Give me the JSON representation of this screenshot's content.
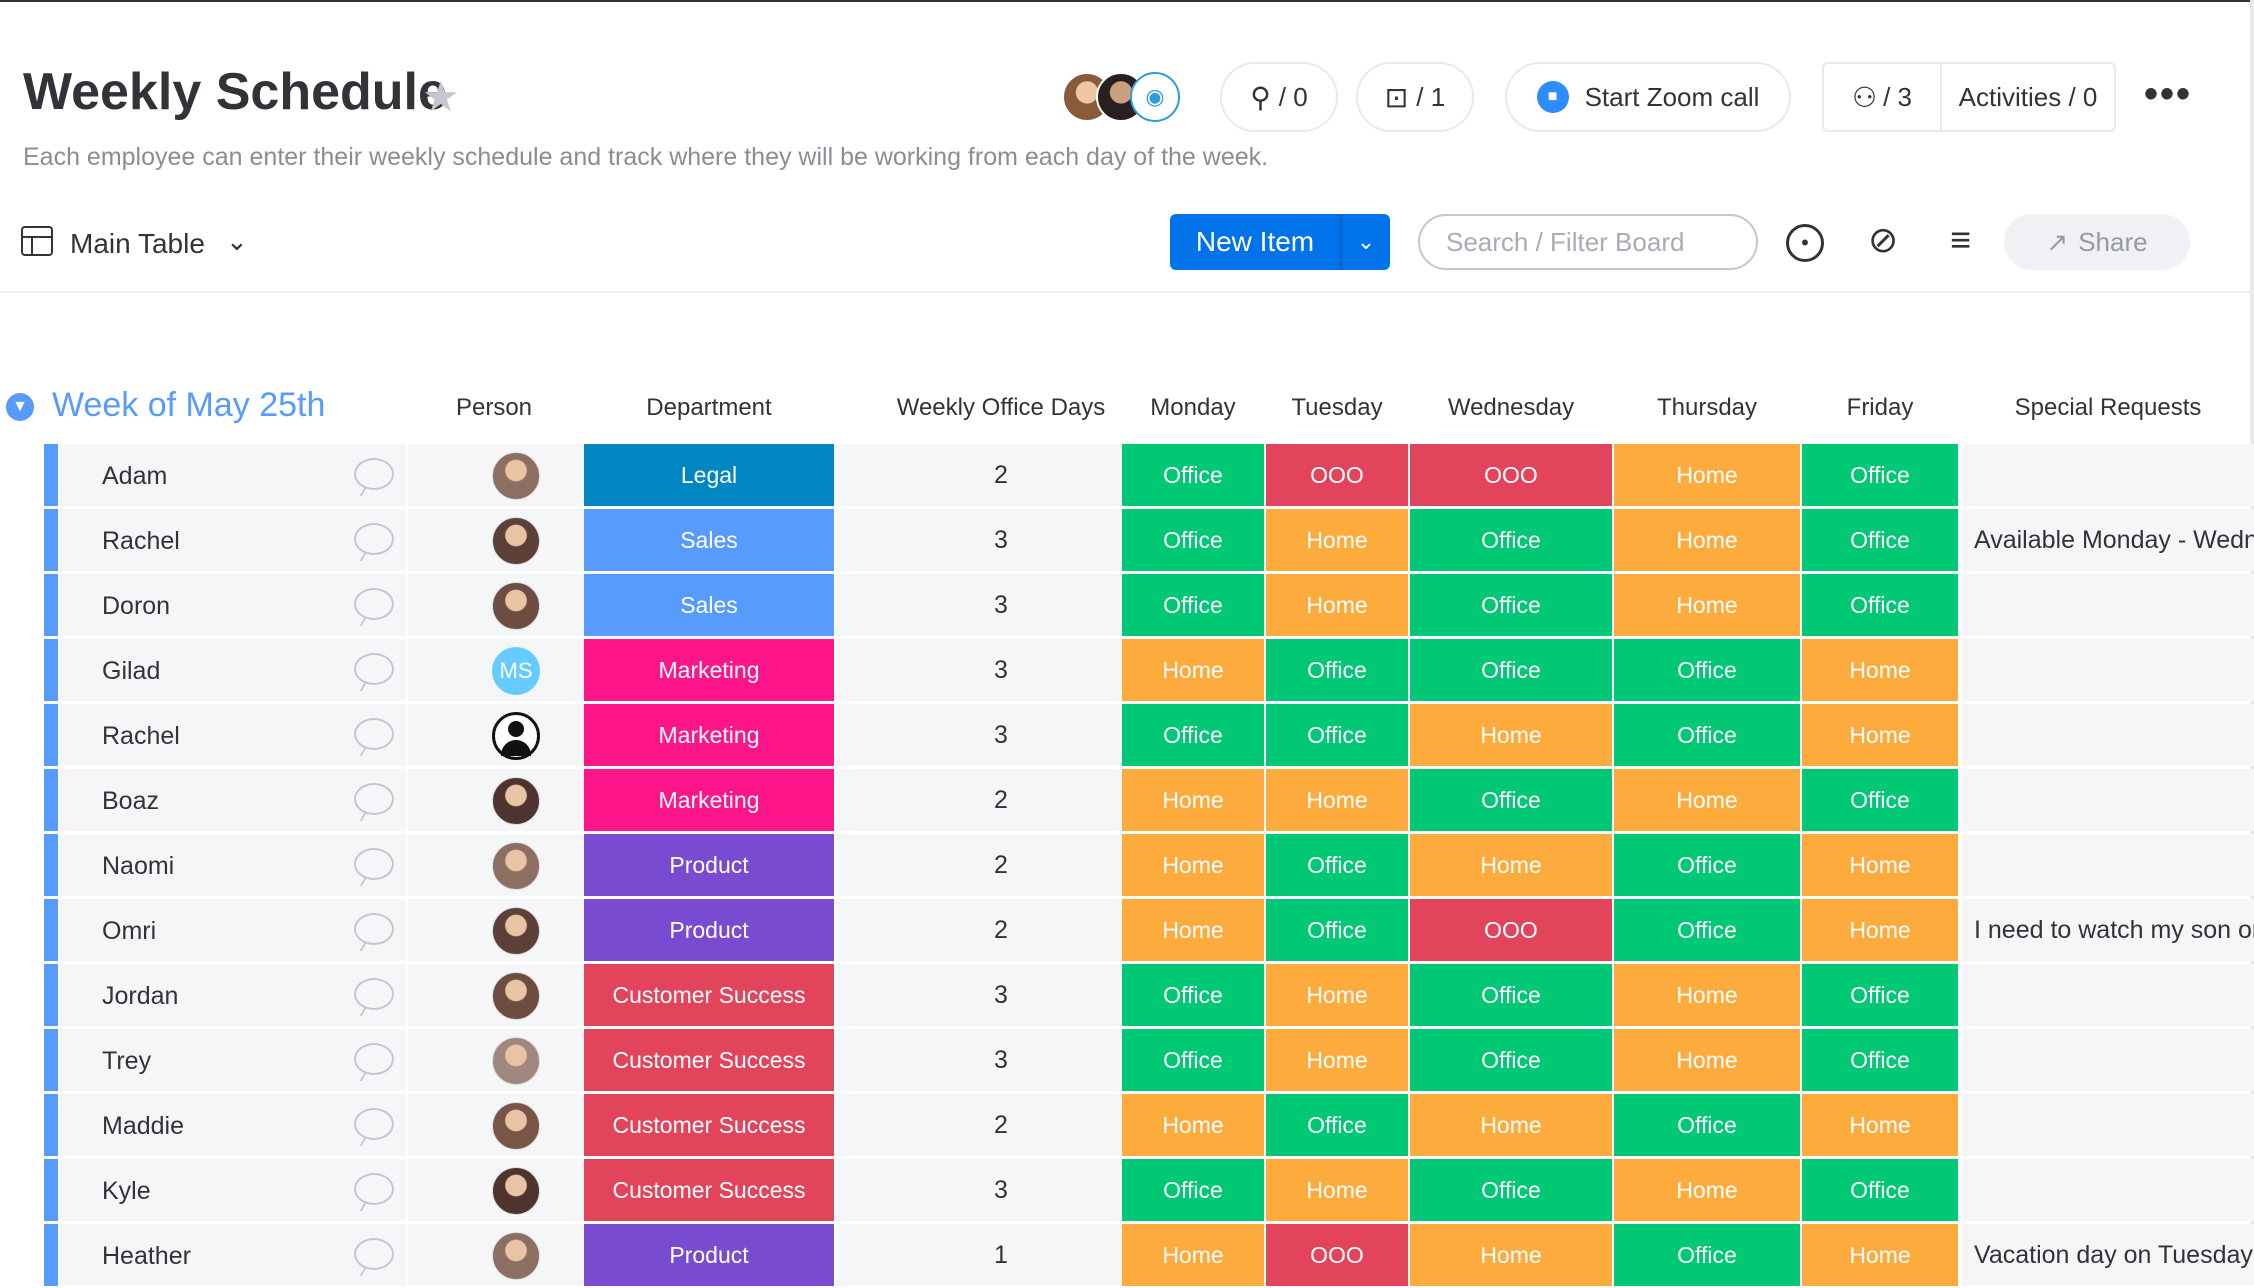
{
  "board": {
    "title": "Weekly Schedule",
    "description": "Each employee can enter their weekly schedule and track where they will be working from each day of the week."
  },
  "header": {
    "integrations_count": "/ 0",
    "automations_count": "/ 1",
    "zoom_label": "Start Zoom call",
    "members_count": "/ 3",
    "activities_label": "Activities / 0"
  },
  "toolbar": {
    "view_label": "Main Table",
    "new_item_label": "New Item",
    "search_placeholder": "Search / Filter Board",
    "share_label": "Share"
  },
  "group": {
    "title": "Week of May 25th",
    "columns": {
      "person": "Person",
      "department": "Department",
      "weekly_office_days": "Weekly Office Days",
      "monday": "Monday",
      "tuesday": "Tuesday",
      "wednesday": "Wednesday",
      "thursday": "Thursday",
      "friday": "Friday",
      "special_requests": "Special Requests"
    }
  },
  "colors": {
    "Office": "#00c875",
    "Home": "#fdab3d",
    "OOO": "#e2445c",
    "Legal": "#0086c0",
    "Sales": "#579bfc",
    "Marketing": "#ff158a",
    "Product": "#784bd1",
    "Customer Success": "#e2445c"
  },
  "rows": [
    {
      "name": "Adam",
      "avatar": "photo",
      "department": "Legal",
      "days": "2",
      "mon": "Office",
      "tue": "OOO",
      "wed": "OOO",
      "thu": "Home",
      "fri": "Office",
      "special": ""
    },
    {
      "name": "Rachel",
      "avatar": "photo",
      "department": "Sales",
      "days": "3",
      "mon": "Office",
      "tue": "Home",
      "wed": "Office",
      "thu": "Home",
      "fri": "Office",
      "special": "Available Monday - Wedne"
    },
    {
      "name": "Doron",
      "avatar": "photo",
      "department": "Sales",
      "days": "3",
      "mon": "Office",
      "tue": "Home",
      "wed": "Office",
      "thu": "Home",
      "fri": "Office",
      "special": ""
    },
    {
      "name": "Gilad",
      "avatar": "MS",
      "department": "Marketing",
      "days": "3",
      "mon": "Home",
      "tue": "Office",
      "wed": "Office",
      "thu": "Office",
      "fri": "Home",
      "special": ""
    },
    {
      "name": "Rachel",
      "avatar": "blank",
      "department": "Marketing",
      "days": "3",
      "mon": "Office",
      "tue": "Office",
      "wed": "Home",
      "thu": "Office",
      "fri": "Home",
      "special": ""
    },
    {
      "name": "Boaz",
      "avatar": "photo",
      "department": "Marketing",
      "days": "2",
      "mon": "Home",
      "tue": "Home",
      "wed": "Office",
      "thu": "Home",
      "fri": "Office",
      "special": ""
    },
    {
      "name": "Naomi",
      "avatar": "photo",
      "department": "Product",
      "days": "2",
      "mon": "Home",
      "tue": "Office",
      "wed": "Home",
      "thu": "Office",
      "fri": "Home",
      "special": ""
    },
    {
      "name": "Omri",
      "avatar": "photo",
      "department": "Product",
      "days": "2",
      "mon": "Home",
      "tue": "Office",
      "wed": "OOO",
      "thu": "Office",
      "fri": "Home",
      "special": "I need to watch my son on"
    },
    {
      "name": "Jordan",
      "avatar": "photo",
      "department": "Customer Success",
      "days": "3",
      "mon": "Office",
      "tue": "Home",
      "wed": "Office",
      "thu": "Home",
      "fri": "Office",
      "special": ""
    },
    {
      "name": "Trey",
      "avatar": "photo",
      "department": "Customer Success",
      "days": "3",
      "mon": "Office",
      "tue": "Home",
      "wed": "Office",
      "thu": "Home",
      "fri": "Office",
      "special": ""
    },
    {
      "name": "Maddie",
      "avatar": "photo",
      "department": "Customer Success",
      "days": "2",
      "mon": "Home",
      "tue": "Office",
      "wed": "Home",
      "thu": "Office",
      "fri": "Home",
      "special": ""
    },
    {
      "name": "Kyle",
      "avatar": "photo",
      "department": "Customer Success",
      "days": "3",
      "mon": "Office",
      "tue": "Home",
      "wed": "Office",
      "thu": "Home",
      "fri": "Office",
      "special": ""
    },
    {
      "name": "Heather",
      "avatar": "photo",
      "department": "Product",
      "days": "1",
      "mon": "Home",
      "tue": "OOO",
      "wed": "Home",
      "thu": "Office",
      "fri": "Home",
      "special": "Vacation day on Tuesday"
    }
  ]
}
